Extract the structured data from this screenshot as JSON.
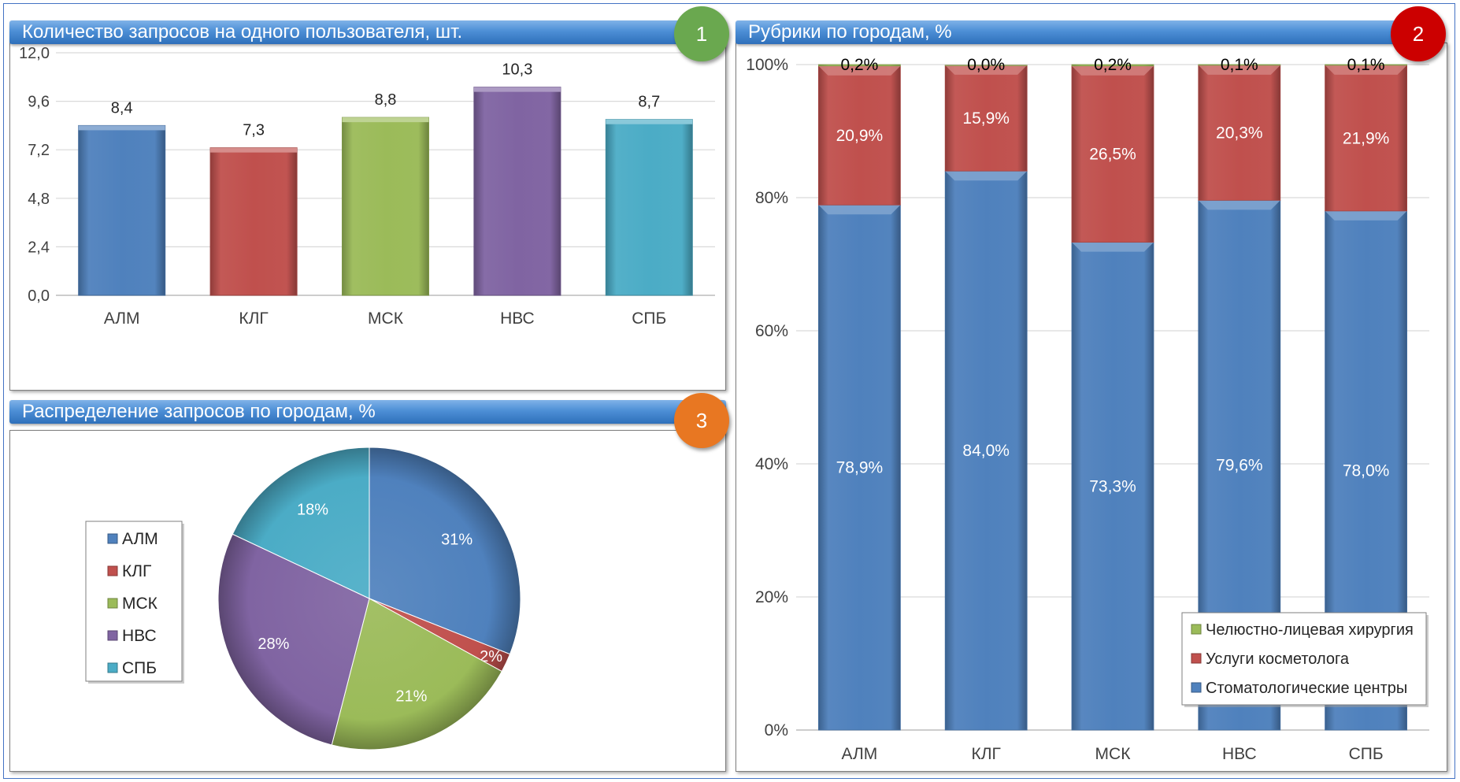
{
  "panels": {
    "p1": {
      "title": "Количество запросов на одного пользователя, шт.",
      "badge": "1"
    },
    "p2": {
      "title": "Рубрики по городам, %",
      "badge": "2"
    },
    "p3": {
      "title": "Распределение запросов по городам, %",
      "badge": "3"
    }
  },
  "colors": {
    "blue": "#4f81bd",
    "red": "#c0504d",
    "green": "#9bbb59",
    "purple": "#8064a2",
    "cyan": "#4bacc6",
    "badge1": "#6aa84f",
    "badge2": "#cc0000",
    "badge3": "#e87722"
  },
  "chart_data": [
    {
      "id": "requests_per_user",
      "type": "bar",
      "title": "Количество запросов на одного пользователя, шт.",
      "categories": [
        "АЛМ",
        "КЛГ",
        "МСК",
        "НВС",
        "СПБ"
      ],
      "values": [
        8.4,
        7.3,
        8.8,
        10.3,
        8.7
      ],
      "value_labels": [
        "8,4",
        "7,3",
        "8,8",
        "10,3",
        "8,7"
      ],
      "yticks": [
        "0,0",
        "2,4",
        "4,8",
        "7,2",
        "9,6",
        "12,0"
      ],
      "ylim": [
        0,
        12
      ],
      "grid": true
    },
    {
      "id": "categories_by_city",
      "type": "bar",
      "stacked": true,
      "title": "Рубрики по городам, %",
      "categories": [
        "АЛМ",
        "КЛГ",
        "МСК",
        "НВС",
        "СПБ"
      ],
      "series": [
        {
          "name": "Стоматологические центры",
          "values": [
            78.9,
            84.0,
            73.3,
            79.6,
            78.0
          ],
          "labels": [
            "78,9%",
            "84,0%",
            "73,3%",
            "79,6%",
            "78,0%"
          ]
        },
        {
          "name": "Услуги косметолога",
          "values": [
            20.9,
            15.9,
            26.5,
            20.3,
            21.9
          ],
          "labels": [
            "20,9%",
            "15,9%",
            "26,5%",
            "20,3%",
            "21,9%"
          ]
        },
        {
          "name": "Челюстно-лицевая хирургия",
          "values": [
            0.2,
            0.0,
            0.2,
            0.1,
            0.1
          ],
          "labels": [
            "0,2%",
            "0,0%",
            "0,2%",
            "0,1%",
            "0,1%"
          ]
        }
      ],
      "yticks": [
        "0%",
        "20%",
        "40%",
        "60%",
        "80%",
        "100%"
      ],
      "ylim": [
        0,
        100
      ],
      "legend": "bottom-right",
      "grid": true
    },
    {
      "id": "requests_by_city",
      "type": "pie",
      "title": "Распределение запросов по городам, %",
      "categories": [
        "АЛМ",
        "КЛГ",
        "МСК",
        "НВС",
        "СПБ"
      ],
      "values": [
        31,
        2,
        21,
        28,
        18
      ],
      "labels": [
        "31%",
        "2%",
        "21%",
        "28%",
        "18%"
      ],
      "legend": "left"
    }
  ]
}
